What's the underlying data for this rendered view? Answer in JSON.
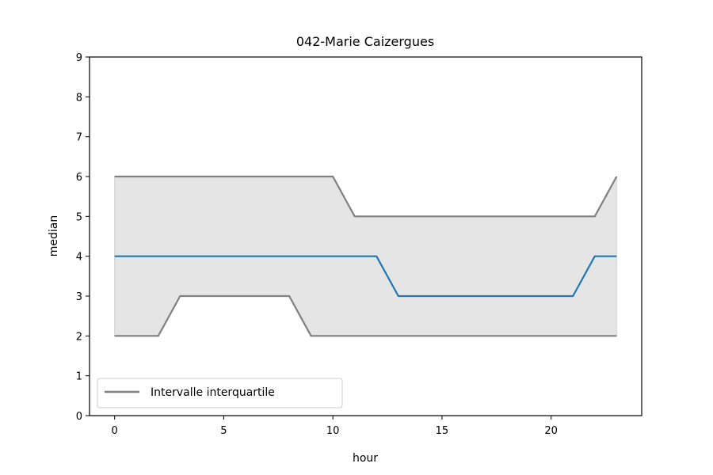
{
  "chart_data": {
    "type": "line",
    "title": "042-Marie Caizergues",
    "xlabel": "hour",
    "ylabel": "median",
    "xlim": [
      -1.15,
      24.15
    ],
    "ylim": [
      0,
      9
    ],
    "xticks": [
      0,
      5,
      10,
      15,
      20
    ],
    "yticks": [
      0,
      1,
      2,
      3,
      4,
      5,
      6,
      7,
      8,
      9
    ],
    "x": [
      0,
      1,
      2,
      3,
      4,
      5,
      6,
      7,
      8,
      9,
      10,
      11,
      12,
      13,
      14,
      15,
      16,
      17,
      18,
      19,
      20,
      21,
      22,
      23
    ],
    "median": {
      "values": [
        4,
        4,
        4,
        4,
        4,
        4,
        4,
        4,
        4,
        4,
        4,
        4,
        4,
        3,
        3,
        3,
        3,
        3,
        3,
        3,
        3,
        3,
        4,
        4
      ],
      "color": "#1f77b4"
    },
    "interquartile": {
      "name": "Intervalle interquartile",
      "lower": [
        2,
        2,
        2,
        3,
        3,
        3,
        3,
        3,
        3,
        2,
        2,
        2,
        2,
        2,
        2,
        2,
        2,
        2,
        2,
        2,
        2,
        2,
        2,
        2
      ],
      "upper": [
        6,
        6,
        6,
        6,
        6,
        6,
        6,
        6,
        6,
        6,
        6,
        5,
        5,
        5,
        5,
        5,
        5,
        5,
        5,
        5,
        5,
        5,
        5,
        6
      ],
      "line_color": "#808080",
      "fill_color": "#e5e5e5"
    },
    "grid": false,
    "legend_position": "lower-left"
  }
}
